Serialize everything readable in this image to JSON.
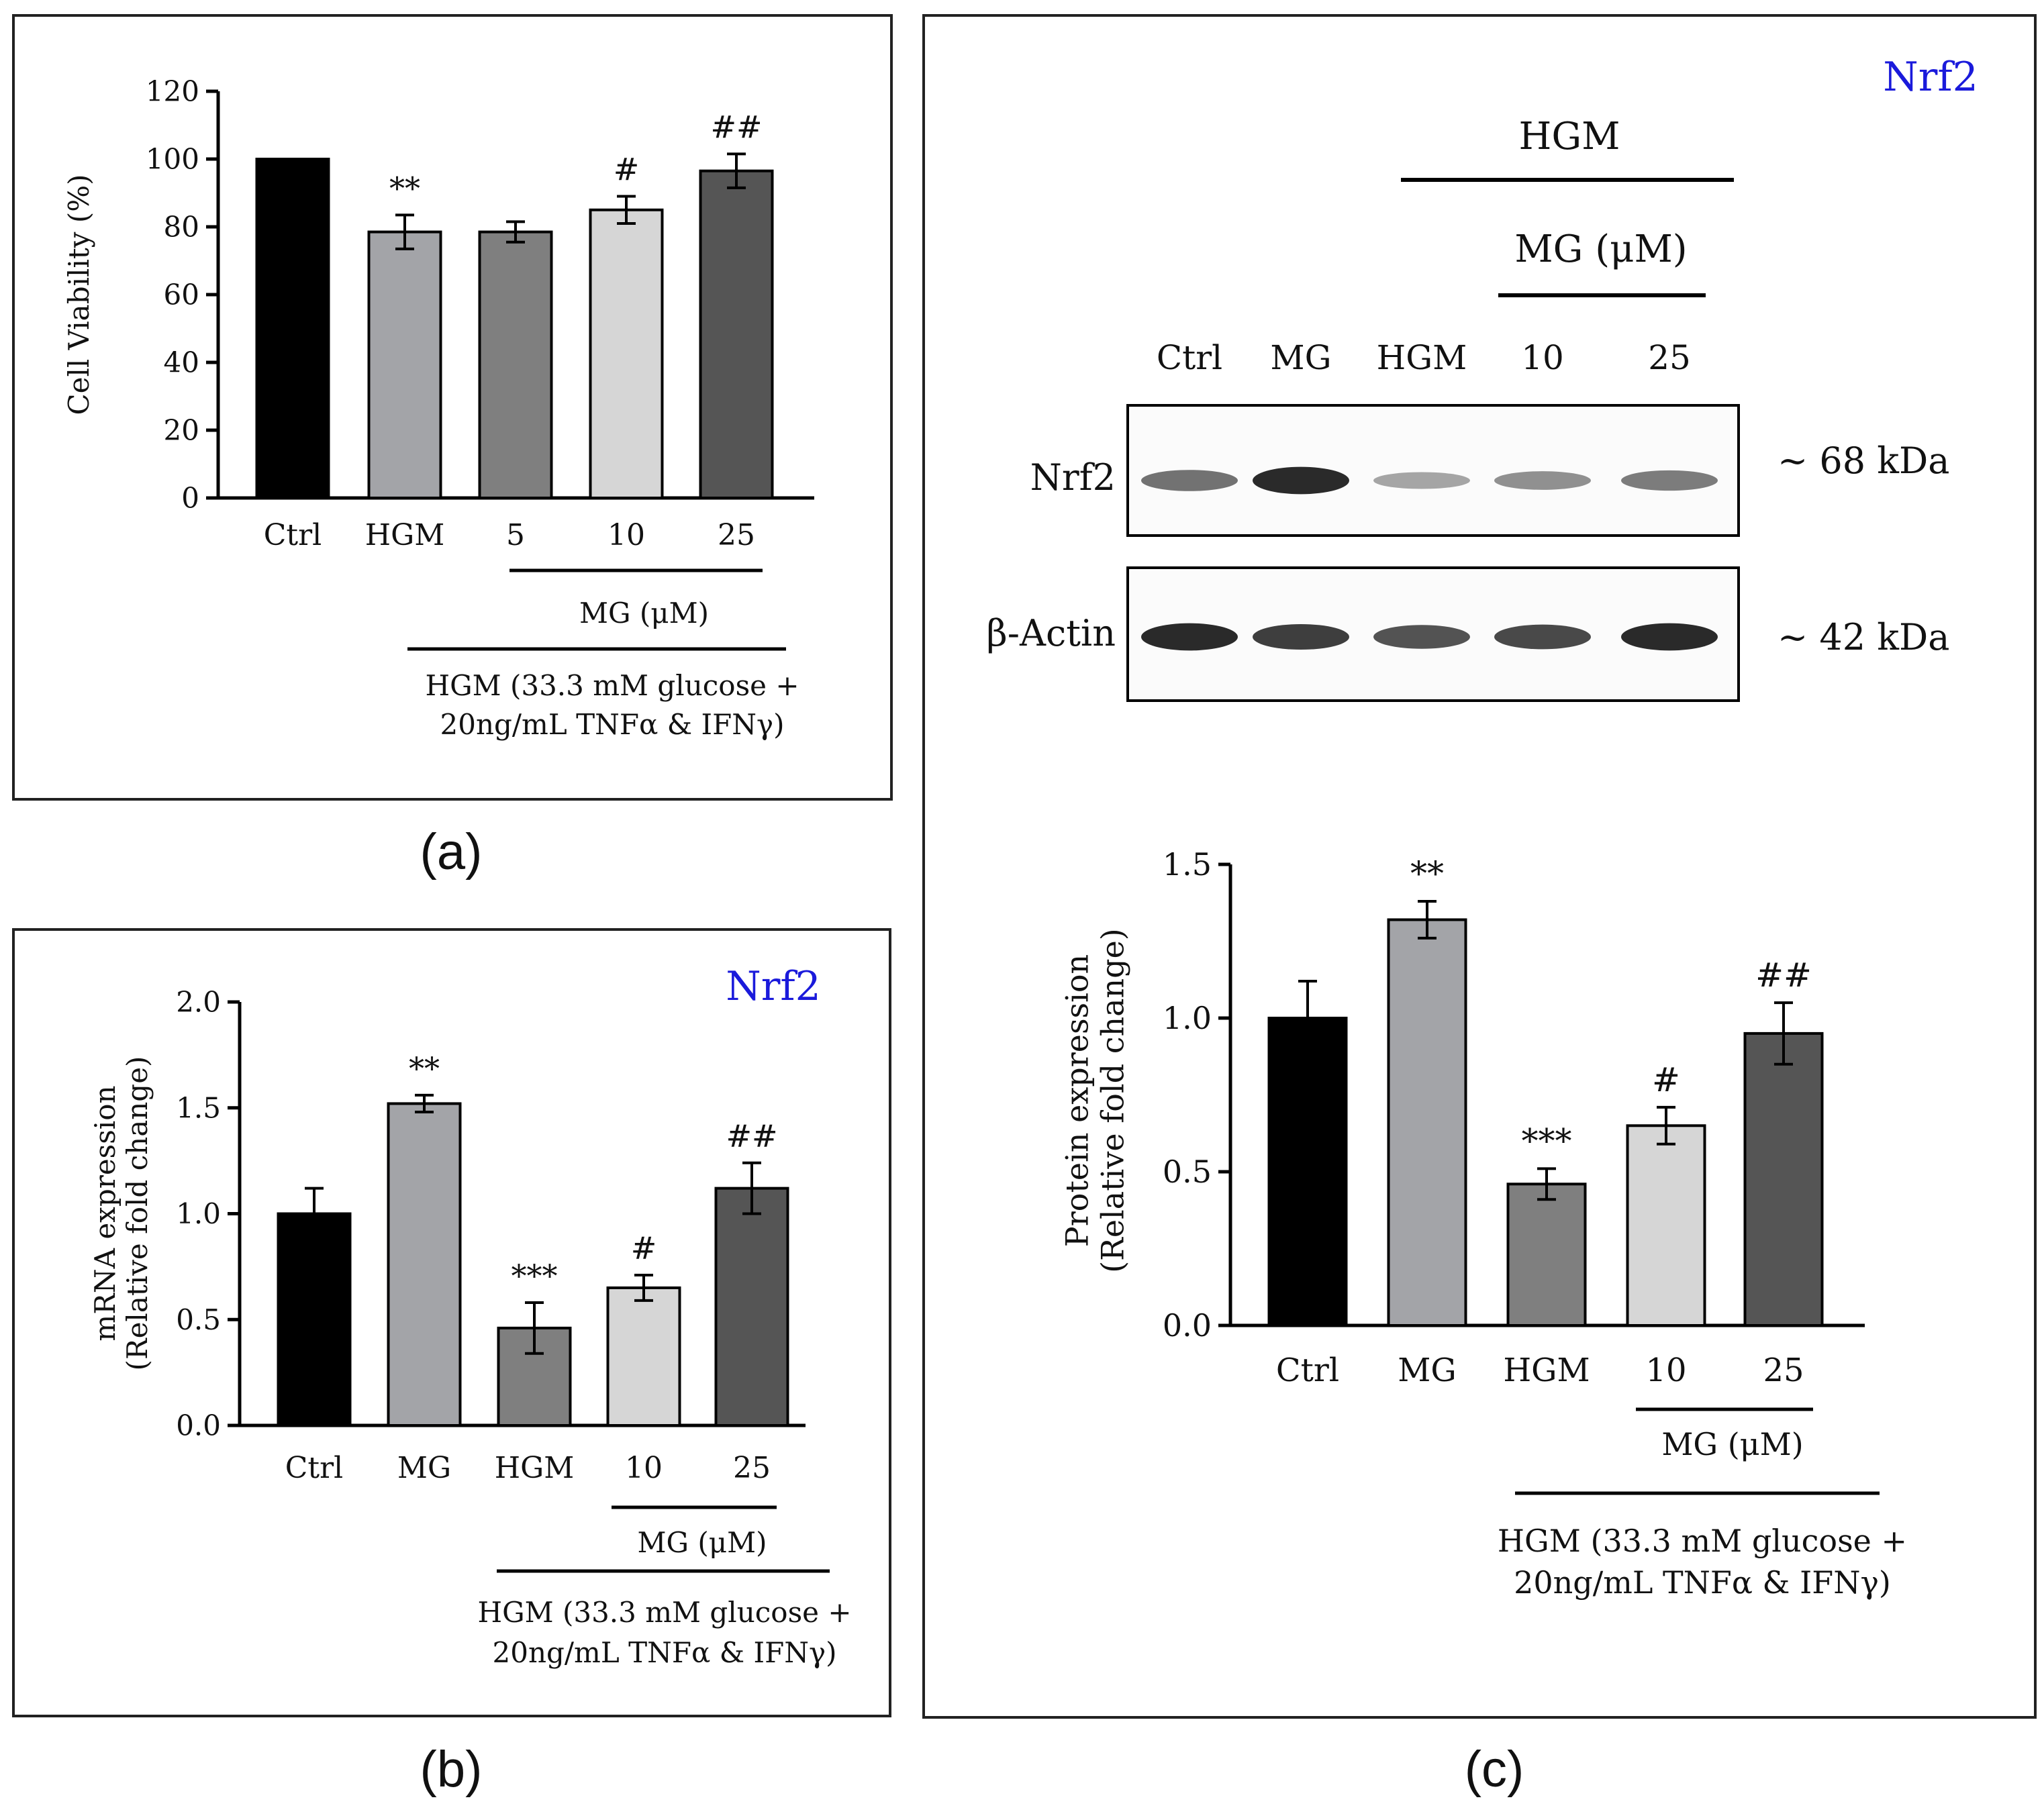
{
  "colors": {
    "ctrl": "#000000",
    "light_gray": "#a3a4a8",
    "mid_gray": "#7f7f7f",
    "pale_gray": "#d6d6d6",
    "dark_gray": "#555555",
    "accent_blue": "#1a1adb"
  },
  "panels": {
    "a": {
      "letter": "(a)"
    },
    "b": {
      "letter": "(b)",
      "gene_label": "Nrf2"
    },
    "c": {
      "letter": "(c)",
      "gene_label": "Nrf2"
    }
  },
  "blot": {
    "header_hgm": "HGM",
    "header_mg": "MG (μM)",
    "lanes": [
      "Ctrl",
      "MG",
      "HGM",
      "10",
      "25"
    ],
    "rows": [
      {
        "name": "Nrf2",
        "size": "~ 68 kDa",
        "intensity": [
          0.6,
          0.95,
          0.35,
          0.45,
          0.55
        ]
      },
      {
        "name": "β-Actin",
        "size": "~ 42 kDa",
        "intensity": [
          0.95,
          0.85,
          0.75,
          0.8,
          0.95
        ]
      }
    ]
  },
  "chart_data": [
    {
      "id": "a",
      "type": "bar",
      "title": "",
      "xlabel": "",
      "ylabel": "Cell Viability (%)",
      "ylabel_lines": [
        "Cell Viability (%)"
      ],
      "ylim": [
        0,
        120
      ],
      "yticks": [
        0,
        20,
        40,
        60,
        80,
        100,
        120
      ],
      "ytick_labels": [
        "0",
        "20",
        "40",
        "60",
        "80",
        "100",
        "120"
      ],
      "categories": [
        "Ctrl",
        "HGM",
        "5",
        "10",
        "25"
      ],
      "values": [
        100,
        78.5,
        78.5,
        85,
        96.5
      ],
      "errors": [
        0,
        5,
        3,
        4,
        5
      ],
      "significance": [
        "",
        "**",
        "",
        "#",
        "##"
      ],
      "bar_colors": [
        "#000000",
        "#a3a4a8",
        "#7f7f7f",
        "#d6d6d6",
        "#555555"
      ],
      "mg_label": "MG (μM)",
      "hgm_label_lines": [
        "HGM (33.3 mM glucose +",
        "20ng/mL TNFα & IFNγ)"
      ]
    },
    {
      "id": "b",
      "type": "bar",
      "title": "Nrf2",
      "xlabel": "",
      "ylabel": "mRNA expression (Relative fold change)",
      "ylabel_lines": [
        "mRNA expression",
        "(Relative fold change)"
      ],
      "ylim": [
        0,
        2.0
      ],
      "yticks": [
        0,
        0.5,
        1.0,
        1.5,
        2.0
      ],
      "ytick_labels": [
        "0.0",
        "0.5",
        "1.0",
        "1.5",
        "2.0"
      ],
      "categories": [
        "Ctrl",
        "MG",
        "HGM",
        "10",
        "25"
      ],
      "values": [
        1.0,
        1.52,
        0.46,
        0.65,
        1.12
      ],
      "errors": [
        0.12,
        0.04,
        0.12,
        0.06,
        0.12
      ],
      "significance": [
        "",
        "**",
        "***",
        "#",
        "##"
      ],
      "bar_colors": [
        "#000000",
        "#a3a4a8",
        "#7f7f7f",
        "#d6d6d6",
        "#555555"
      ],
      "mg_label": "MG (μM)",
      "hgm_label_lines": [
        "HGM (33.3 mM glucose +",
        "20ng/mL TNFα & IFNγ)"
      ]
    },
    {
      "id": "c",
      "type": "bar",
      "title": "Nrf2",
      "xlabel": "",
      "ylabel": "Protein expression (Relative fold change)",
      "ylabel_lines": [
        "Protein expression",
        "(Relative fold change)"
      ],
      "ylim": [
        0,
        1.5
      ],
      "yticks": [
        0,
        0.5,
        1.0,
        1.5
      ],
      "ytick_labels": [
        "0.0",
        "0.5",
        "1.0",
        "1.5"
      ],
      "categories": [
        "Ctrl",
        "MG",
        "HGM",
        "10",
        "25"
      ],
      "values": [
        1.0,
        1.32,
        0.46,
        0.65,
        0.95
      ],
      "errors": [
        0.12,
        0.06,
        0.05,
        0.06,
        0.1
      ],
      "significance": [
        "",
        "**",
        "***",
        "#",
        "##"
      ],
      "bar_colors": [
        "#000000",
        "#a3a4a8",
        "#7f7f7f",
        "#d6d6d6",
        "#555555"
      ],
      "mg_label": "MG (μM)",
      "hgm_label_lines": [
        "HGM (33.3 mM glucose +",
        "20ng/mL TNFα & IFNγ)"
      ]
    }
  ]
}
